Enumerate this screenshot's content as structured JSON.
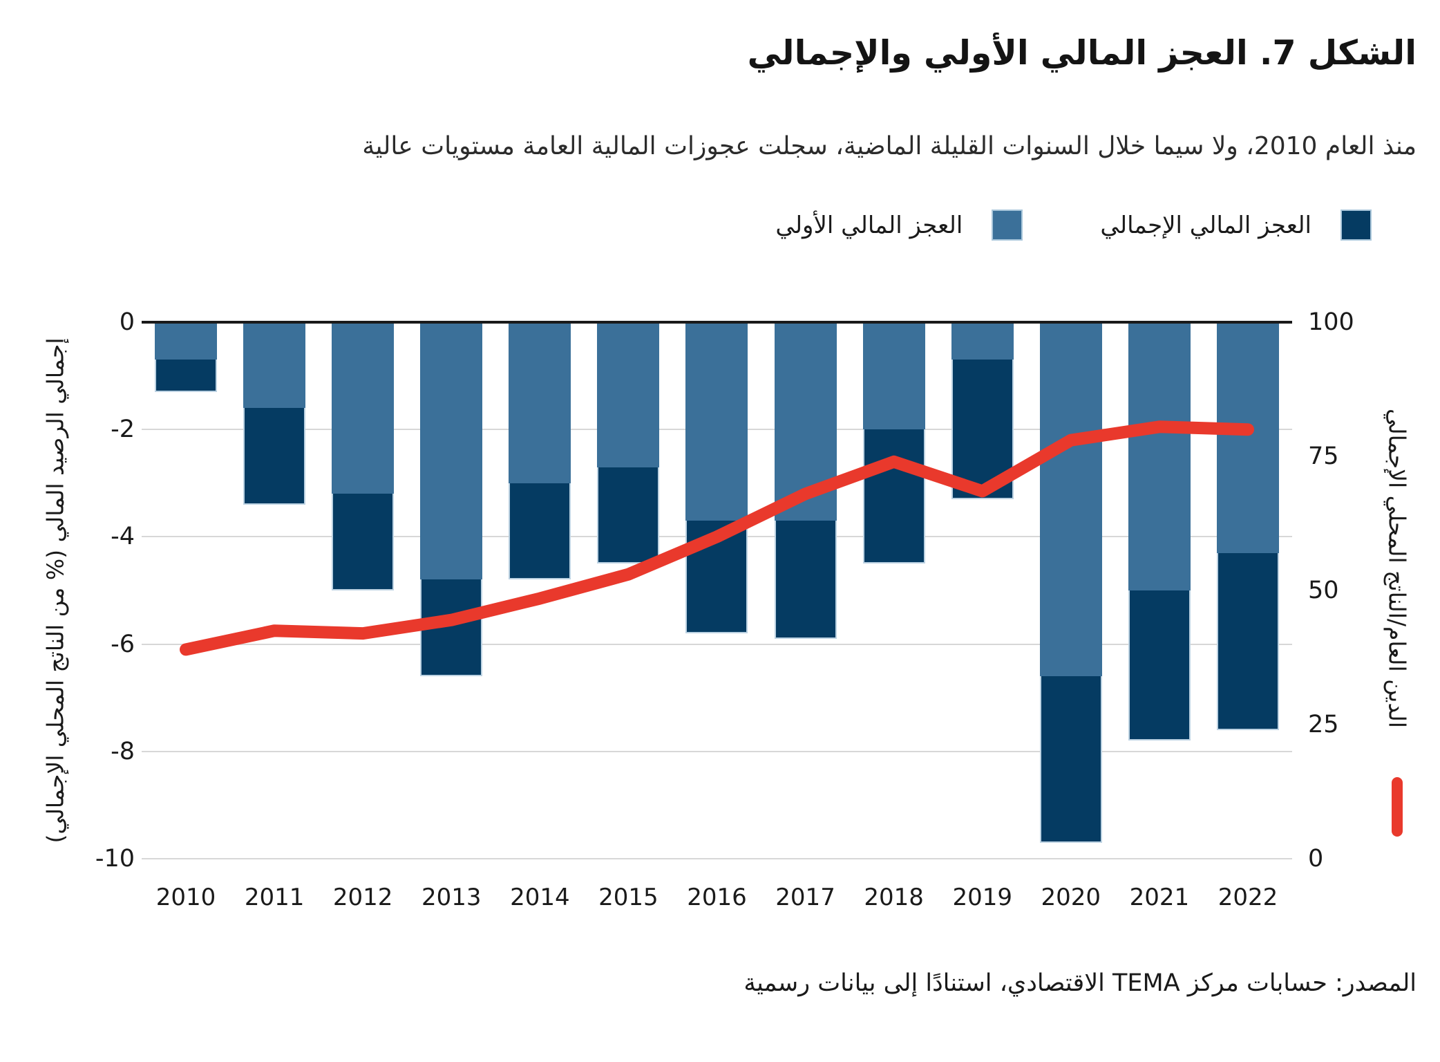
{
  "header": {
    "title": "الشكل 7. العجز المالي الأولي والإجمالي",
    "subtitle": "منذ العام 2010، ولا سيما خلال السنوات القليلة الماضية، سجلت عجوزات المالية العامة مستويات عالية"
  },
  "legend": {
    "items": [
      {
        "key": "overall",
        "label": "العجز المالي الإجمالي",
        "color": "#053B62"
      },
      {
        "key": "primary",
        "label": "العجز المالي الأولي",
        "color": "#3B7099"
      }
    ]
  },
  "axes": {
    "left_title": "إجمالي الرصيد المالي (% من الناتج المحلي الإجمالي)",
    "right_title": "الدين العام/الناتج المحلي الإجمالي",
    "left_ticks": [
      "0",
      "-2",
      "-4",
      "-6",
      "-8",
      "-10"
    ],
    "right_ticks": [
      "100",
      "75",
      "50",
      "25",
      "0"
    ]
  },
  "footer": {
    "source": "المصدر: حسابات مركز TEMA الاقتصادي، استنادًا إلى بيانات رسمية"
  },
  "colors": {
    "overall_bar": "#053B62",
    "primary_bar": "#3B7099",
    "debt_line": "#E9392C",
    "gridline": "#d7d7d7",
    "zero_line": "#1a1a1a"
  },
  "chart_data": {
    "type": "bar+line",
    "title": "الشكل 7. العجز المالي الأولي والإجمالي",
    "categories": [
      "2010",
      "2011",
      "2012",
      "2013",
      "2014",
      "2015",
      "2016",
      "2017",
      "2018",
      "2019",
      "2020",
      "2021",
      "2022"
    ],
    "series": [
      {
        "name": "العجز المالي الأولي",
        "type": "bar",
        "axis": "left",
        "color": "#3B7099",
        "values": [
          -0.7,
          -1.6,
          -3.2,
          -4.8,
          -3.0,
          -2.7,
          -3.7,
          -3.7,
          -2.0,
          -0.7,
          -6.6,
          -5.0,
          -4.3
        ]
      },
      {
        "name": "العجز المالي الإجمالي",
        "type": "bar",
        "axis": "left",
        "color": "#053B62",
        "values": [
          -1.3,
          -3.4,
          -5.0,
          -6.6,
          -4.8,
          -4.5,
          -5.8,
          -5.9,
          -4.5,
          -3.3,
          -9.7,
          -7.8,
          -7.6
        ]
      },
      {
        "name": "الدين العام/الناتج المحلي الإجمالي",
        "type": "line",
        "axis": "right",
        "color": "#E9392C",
        "values": [
          39,
          42.5,
          42,
          44.5,
          48.5,
          53,
          60,
          68,
          74,
          68.5,
          78,
          80.5,
          80
        ]
      }
    ],
    "left_axis": {
      "min": -10,
      "max": 0,
      "label": "إجمالي الرصيد المالي (% من الناتج المحلي الإجمالي)",
      "ticks": [
        0,
        -2,
        -4,
        -6,
        -8,
        -10
      ]
    },
    "right_axis": {
      "min": 0,
      "max": 100,
      "label": "الدين العام/الناتج المحلي الإجمالي",
      "ticks": [
        100,
        75,
        50,
        25,
        0
      ]
    },
    "grid": true,
    "legend_position": "top",
    "xlabel": "",
    "ylabel": "إجمالي الرصيد المالي (% من الناتج المحلي الإجمالي)"
  }
}
